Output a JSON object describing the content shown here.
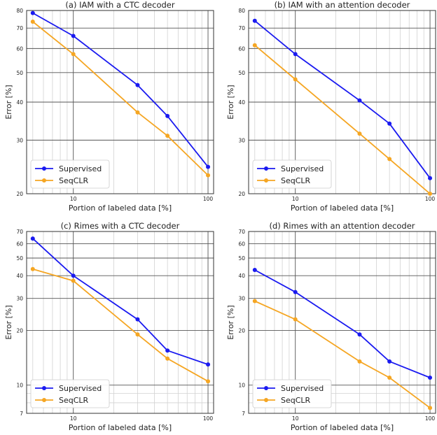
{
  "chart_data": [
    {
      "type": "line",
      "title": "(a) IAM with a CTC decoder",
      "xlabel": "Portion of labeled data [%]",
      "ylabel": "Error [%]",
      "xscale": "log",
      "yscale": "log",
      "xlim": [
        4.5,
        110
      ],
      "ylim": [
        20,
        80
      ],
      "xticks": [
        10,
        100
      ],
      "yticks": [
        20,
        30,
        40,
        50,
        60,
        70,
        80
      ],
      "grid": true,
      "legend_position": "bottom-left",
      "x": [
        5,
        10,
        30,
        50,
        100
      ],
      "series": [
        {
          "name": "Supervised",
          "color": "#1a1af0",
          "values": [
            78.5,
            66,
            45.5,
            36,
            24.5
          ]
        },
        {
          "name": "SeqCLR",
          "color": "#f5a623",
          "values": [
            73.5,
            57.5,
            37,
            31,
            23
          ]
        }
      ]
    },
    {
      "type": "line",
      "title": "(b) IAM with an attention decoder",
      "xlabel": "Portion of labeled data [%]",
      "ylabel": "Error [%]",
      "xscale": "log",
      "yscale": "log",
      "xlim": [
        4.5,
        110
      ],
      "ylim": [
        20,
        80
      ],
      "xticks": [
        10,
        100
      ],
      "yticks": [
        20,
        30,
        40,
        50,
        60,
        70,
        80
      ],
      "grid": true,
      "legend_position": "bottom-left",
      "x": [
        5,
        10,
        30,
        50,
        100
      ],
      "series": [
        {
          "name": "Supervised",
          "color": "#1a1af0",
          "values": [
            74,
            57.5,
            40.5,
            34,
            22.5
          ]
        },
        {
          "name": "SeqCLR",
          "color": "#f5a623",
          "values": [
            61.5,
            47.5,
            31.5,
            26,
            20
          ]
        }
      ]
    },
    {
      "type": "line",
      "title": "(c) Rimes with a CTC decoder",
      "xlabel": "Portion of labeled data [%]",
      "ylabel": "Error [%]",
      "xscale": "log",
      "yscale": "log",
      "xlim": [
        4.5,
        110
      ],
      "ylim": [
        7,
        70
      ],
      "xticks": [
        10,
        100
      ],
      "yticks": [
        7,
        10,
        20,
        30,
        40,
        50,
        60,
        70
      ],
      "grid": true,
      "legend_position": "bottom-left",
      "x": [
        5,
        10,
        30,
        50,
        100
      ],
      "series": [
        {
          "name": "Supervised",
          "color": "#1a1af0",
          "values": [
            64,
            40,
            23,
            15.5,
            13
          ]
        },
        {
          "name": "SeqCLR",
          "color": "#f5a623",
          "values": [
            43.5,
            37.5,
            19,
            14,
            10.5
          ]
        }
      ]
    },
    {
      "type": "line",
      "title": "(d) Rimes with an attention decoder",
      "xlabel": "Portion of labeled data [%]",
      "ylabel": "Error [%]",
      "xscale": "log",
      "yscale": "log",
      "xlim": [
        4.5,
        110
      ],
      "ylim": [
        7,
        70
      ],
      "xticks": [
        10,
        100
      ],
      "yticks": [
        7,
        10,
        20,
        30,
        40,
        50,
        60,
        70
      ],
      "grid": true,
      "legend_position": "bottom-left",
      "x": [
        5,
        10,
        30,
        50,
        100
      ],
      "series": [
        {
          "name": "Supervised",
          "color": "#1a1af0",
          "values": [
            43,
            32.5,
            19,
            13.5,
            11
          ]
        },
        {
          "name": "SeqCLR",
          "color": "#f5a623",
          "values": [
            29,
            23,
            13.5,
            11,
            7.5
          ]
        }
      ]
    }
  ]
}
